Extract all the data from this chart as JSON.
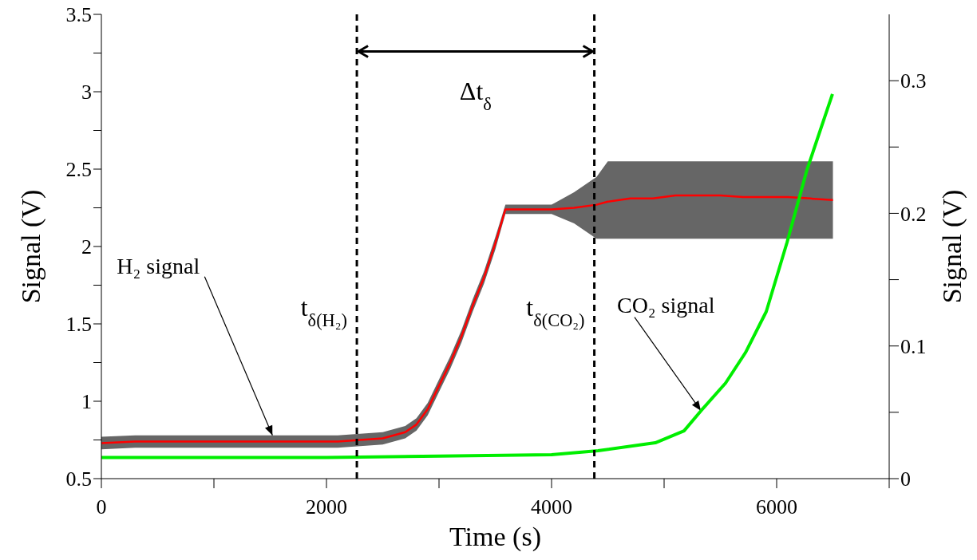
{
  "chart_data": {
    "type": "line",
    "xlabel": "Time (s)",
    "ylabel": "Signal (V)",
    "y2label": "Signal (V)",
    "xlim": [
      0,
      7000
    ],
    "xticks": [
      0,
      {
        "value": 1000,
        "label": null
      },
      2000,
      {
        "value": 3000,
        "label": null
      },
      4000,
      {
        "value": 5000,
        "label": null
      },
      6000,
      {
        "value": 7000,
        "label": null
      }
    ],
    "ylim": [
      0.5,
      3.5
    ],
    "yticks": [
      0.5,
      {
        "value": 0.75,
        "label": null
      },
      1,
      {
        "value": 1.25,
        "label": null
      },
      1.5,
      {
        "value": 1.75,
        "label": null
      },
      2,
      {
        "value": 2.25,
        "label": null
      },
      2.5,
      {
        "value": 2.75,
        "label": null
      },
      3,
      {
        "value": 3.25,
        "label": null
      },
      3.5
    ],
    "y2lim": [
      0,
      0.35
    ],
    "y2ticks": [
      0,
      {
        "value": 0.05,
        "label": null
      },
      0.1,
      {
        "value": 0.15,
        "label": null
      },
      0.2,
      {
        "value": 0.25,
        "label": null
      },
      0.3
    ],
    "grid": false,
    "legend": false,
    "marker": "none",
    "line_style": "solid",
    "series": [
      {
        "color": "#ff0000",
        "x": [
          0,
          300,
          600,
          900,
          1200,
          1500,
          1800,
          2100,
          2300,
          2500,
          2700,
          2800,
          2900,
          3000,
          3100,
          3200,
          3300,
          3400,
          3500,
          3590,
          3800,
          4000,
          4200,
          4400,
          4500,
          4700,
          4900,
          5100,
          5300,
          5500,
          5700,
          5900,
          6100,
          6300,
          6500
        ],
        "values": [
          0.73,
          0.74,
          0.74,
          0.74,
          0.74,
          0.74,
          0.74,
          0.74,
          0.75,
          0.76,
          0.8,
          0.85,
          0.95,
          1.1,
          1.25,
          1.42,
          1.62,
          1.8,
          2.02,
          2.24,
          2.24,
          2.24,
          2.25,
          2.27,
          2.29,
          2.31,
          2.31,
          2.33,
          2.33,
          2.33,
          2.32,
          2.32,
          2.32,
          2.31,
          2.3
        ],
        "lower": [
          0.69,
          0.7,
          0.7,
          0.7,
          0.7,
          0.7,
          0.7,
          0.7,
          0.71,
          0.72,
          0.76,
          0.81,
          0.91,
          1.06,
          1.21,
          1.38,
          1.58,
          1.76,
          1.98,
          2.21,
          2.21,
          2.21,
          2.15,
          2.05,
          2.05,
          2.05,
          2.05,
          2.05,
          2.05,
          2.05,
          2.05,
          2.05,
          2.05,
          2.05,
          2.05
        ],
        "upper": [
          0.77,
          0.78,
          0.78,
          0.78,
          0.78,
          0.78,
          0.78,
          0.78,
          0.79,
          0.8,
          0.84,
          0.89,
          0.99,
          1.14,
          1.29,
          1.46,
          1.66,
          1.84,
          2.06,
          2.27,
          2.27,
          2.27,
          2.35,
          2.45,
          2.55,
          2.55,
          2.55,
          2.55,
          2.55,
          2.55,
          2.55,
          2.55,
          2.55,
          2.55,
          2.55
        ]
      },
      {
        "color": "#00ee00",
        "axis": "y2",
        "x": [
          0,
          1000,
          2000,
          3000,
          4000,
          4413,
          4922,
          5177,
          5326,
          5546,
          5723,
          5908,
          6092,
          6270,
          6496
        ],
        "values": [
          0.016,
          0.016,
          0.016,
          0.017,
          0.018,
          0.021,
          0.027,
          0.036,
          0.051,
          0.072,
          0.095,
          0.126,
          0.178,
          0.233,
          0.29
        ]
      }
    ],
    "ref_lines": [
      {
        "axis": "x",
        "value": 2270,
        "label": "t$_{δ(H₂)}$",
        "color": "#000000",
        "line_style": "dashed"
      },
      {
        "axis": "x",
        "value": 4380,
        "label": "t$_{δ(CO₂)}$",
        "color": "#000000",
        "line_style": "dashed"
      }
    ],
    "annotations": [
      "Δt$_{δ}$",
      {
        "text": "H₂ signal",
        "x": 1520,
        "y": 0.78
      },
      {
        "text": "CO₂ signal",
        "x": 5326,
        "y": 0.94
      }
    ]
  }
}
